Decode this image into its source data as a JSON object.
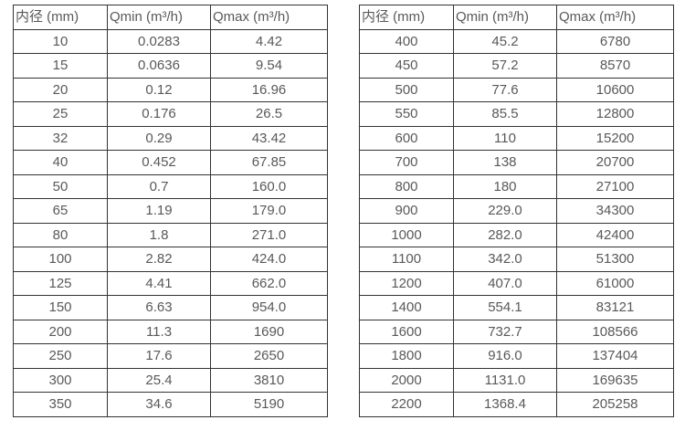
{
  "colors": {
    "background": "#ffffff",
    "border": "#333333",
    "text": "#595959"
  },
  "tables": [
    {
      "name": "flow-table-left",
      "headers": [
        "内径 (mm)",
        "Qmin (m³/h)",
        "Qmax (m³/h)"
      ],
      "rows": [
        [
          "10",
          "0.0283",
          "4.42"
        ],
        [
          "15",
          "0.0636",
          "9.54"
        ],
        [
          "20",
          "0.12",
          "16.96"
        ],
        [
          "25",
          "0.176",
          "26.5"
        ],
        [
          "32",
          "0.29",
          "43.42"
        ],
        [
          "40",
          "0.452",
          "67.85"
        ],
        [
          "50",
          "0.7",
          "160.0"
        ],
        [
          "65",
          "1.19",
          "179.0"
        ],
        [
          "80",
          "1.8",
          "271.0"
        ],
        [
          "100",
          "2.82",
          "424.0"
        ],
        [
          "125",
          "4.41",
          "662.0"
        ],
        [
          "150",
          "6.63",
          "954.0"
        ],
        [
          "200",
          "11.3",
          "1690"
        ],
        [
          "250",
          "17.6",
          "2650"
        ],
        [
          "300",
          "25.4",
          "3810"
        ],
        [
          "350",
          "34.6",
          "5190"
        ]
      ]
    },
    {
      "name": "flow-table-right",
      "headers": [
        "内径 (mm)",
        "Qmin (m³/h)",
        "Qmax (m³/h)"
      ],
      "rows": [
        [
          "400",
          "45.2",
          "6780"
        ],
        [
          "450",
          "57.2",
          "8570"
        ],
        [
          "500",
          "77.6",
          "10600"
        ],
        [
          "550",
          "85.5",
          "12800"
        ],
        [
          "600",
          "110",
          "15200"
        ],
        [
          "700",
          "138",
          "20700"
        ],
        [
          "800",
          "180",
          "27100"
        ],
        [
          "900",
          "229.0",
          "34300"
        ],
        [
          "1000",
          "282.0",
          "42400"
        ],
        [
          "1100",
          "342.0",
          "51300"
        ],
        [
          "1200",
          "407.0",
          "61000"
        ],
        [
          "1400",
          "554.1",
          "83121"
        ],
        [
          "1600",
          "732.7",
          "108566"
        ],
        [
          "1800",
          "916.0",
          "137404"
        ],
        [
          "2000",
          "1131.0",
          "169635"
        ],
        [
          "2200",
          "1368.4",
          "205258"
        ]
      ]
    }
  ]
}
